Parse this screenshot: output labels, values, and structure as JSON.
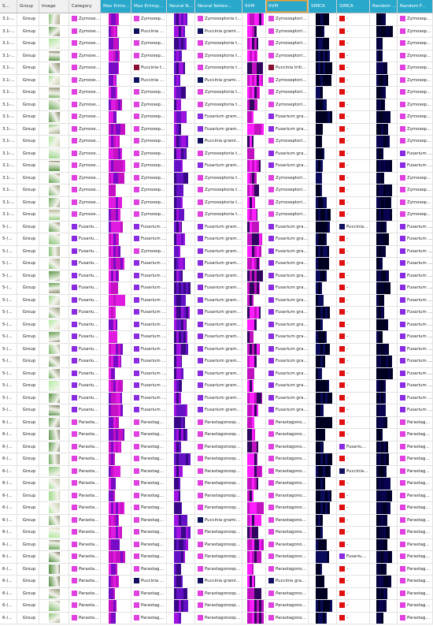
{
  "table": {
    "columns": [
      "S...",
      "Group",
      "Image",
      "Category",
      "Max Entro...",
      "Max Entrop...",
      "Neural Ne...",
      "Neural Netwo...",
      "SVM",
      "SVM",
      "SIMCA",
      "SIMCA",
      "Random F...",
      "Random F..."
    ],
    "class_colors": {
      "Zymoseptoria tritici": "#e040e0",
      "Fusarium graminearum": "#8a2be2",
      "Puccinia graminis": "#10105e",
      "Puccinia triticina": "#8b1030",
      "Parastagonospora nodorum": "#e040e0",
      "–": "#e01010"
    },
    "rows": [
      [
        "3.1-...",
        "Group",
        "Zymoseptoria tritici",
        "Zymoseptoria tritici",
        "Zymoseptoria tritici",
        "Zymoseptoria tritici",
        "–",
        "Zymoseptoria tritici"
      ],
      [
        "3.1-...",
        "Group",
        "Zymoseptoria tritici",
        "Puccinia graminis",
        "Puccinia graminis",
        "Zymoseptoria tritici",
        "–",
        "Zymoseptoria tritici"
      ],
      [
        "3.1-...",
        "Group",
        "Zymoseptoria tritici",
        "Zymoseptoria tritici",
        "Zymoseptoria tritici",
        "Zymoseptoria tritici",
        "–",
        "Zymoseptoria tritici"
      ],
      [
        "3.1-...",
        "Group",
        "Zymoseptoria tritici",
        "Zymoseptoria tritici",
        "Zymoseptoria tritici",
        "Zymoseptoria tritici",
        "–",
        "Zymoseptoria tritici"
      ],
      [
        "3.1-...",
        "Group",
        "Zymoseptoria tritici",
        "Puccinia triticina",
        "Zymoseptoria tritici",
        "Puccinia triticina",
        "–",
        "Zymoseptoria tritici"
      ],
      [
        "3.1-...",
        "Group",
        "Zymoseptoria tritici",
        "Puccinia graminis",
        "Puccinia graminis",
        "Zymoseptoria tritici",
        "–",
        "Zymoseptoria tritici"
      ],
      [
        "3.1-...",
        "Group",
        "Zymoseptoria tritici",
        "Zymoseptoria tritici",
        "Zymoseptoria tritici",
        "Zymoseptoria tritici",
        "–",
        "Zymoseptoria tritici"
      ],
      [
        "3.1-...",
        "Group",
        "Zymoseptoria tritici",
        "Zymoseptoria tritici",
        "Zymoseptoria tritici",
        "Zymoseptoria tritici",
        "–",
        "Zymoseptoria tritici"
      ],
      [
        "3.1-...",
        "Group",
        "Zymoseptoria tritici",
        "Zymoseptoria tritici",
        "Fusarium graminearum",
        "Fusarium graminearum",
        "–",
        "Zymoseptoria tritici"
      ],
      [
        "3.1-...",
        "Group",
        "Zymoseptoria tritici",
        "Zymoseptoria tritici",
        "Fusarium graminearum",
        "Fusarium graminearum",
        "–",
        "Zymoseptoria tritici"
      ],
      [
        "3.1-...",
        "Group",
        "Zymoseptoria tritici",
        "Zymoseptoria tritici",
        "Puccinia graminis",
        "Zymoseptoria tritici",
        "–",
        "Zymoseptoria tritici"
      ],
      [
        "3.1-...",
        "Group",
        "Zymoseptoria tritici",
        "Zymoseptoria tritici",
        "Zymoseptoria tritici",
        "Fusarium graminearum",
        "–",
        "Fusarium graminearum"
      ],
      [
        "3.1-...",
        "Group",
        "Zymoseptoria tritici",
        "Zymoseptoria tritici",
        "Fusarium graminearum",
        "Fusarium graminearum",
        "–",
        "Fusarium graminearum"
      ],
      [
        "3.1-...",
        "Group",
        "Zymoseptoria tritici",
        "Zymoseptoria tritici",
        "Zymoseptoria tritici",
        "Zymoseptoria tritici",
        "–",
        "Zymoseptoria tritici"
      ],
      [
        "3.1-...",
        "Group",
        "Zymoseptoria tritici",
        "Zymoseptoria tritici",
        "Zymoseptoria tritici",
        "Zymoseptoria tritici",
        "–",
        "Zymoseptoria tritici"
      ],
      [
        "3.1-...",
        "Group",
        "Zymoseptoria tritici",
        "Zymoseptoria tritici",
        "Zymoseptoria tritici",
        "Zymoseptoria tritici",
        "–",
        "Zymoseptoria tritici"
      ],
      [
        "3.1-...",
        "Group",
        "Zymoseptoria tritici",
        "Zymoseptoria tritici",
        "Zymoseptoria tritici",
        "Zymoseptoria tritici",
        "–",
        "Zymoseptoria tritici"
      ],
      [
        "5-(...",
        "Group",
        "Fusarium graminearum",
        "Fusarium graminearum",
        "Fusarium graminearum",
        "Fusarium graminearum",
        "Puccinia graminis",
        "Fusarium graminearum"
      ],
      [
        "5-(...",
        "Group",
        "Fusarium graminearum",
        "Fusarium graminearum",
        "Fusarium graminearum",
        "Fusarium graminearum",
        "–",
        "Fusarium graminearum"
      ],
      [
        "5-(...",
        "Group",
        "Fusarium graminearum",
        "Zymoseptoria tritici",
        "Fusarium graminearum",
        "Fusarium graminearum",
        "–",
        "Fusarium graminearum"
      ],
      [
        "5-(...",
        "Group",
        "Fusarium graminearum",
        "Fusarium graminearum",
        "Fusarium graminearum",
        "Fusarium graminearum",
        "–",
        "Fusarium graminearum"
      ],
      [
        "5-(...",
        "Group",
        "Fusarium graminearum",
        "Fusarium graminearum",
        "Fusarium graminearum",
        "Fusarium graminearum",
        "–",
        "Fusarium graminearum"
      ],
      [
        "5-(...",
        "Group",
        "Fusarium graminearum",
        "Fusarium graminearum",
        "Fusarium graminearum",
        "Fusarium graminearum",
        "–",
        "Fusarium graminearum"
      ],
      [
        "5-(...",
        "Group",
        "Fusarium graminearum",
        "Fusarium graminearum",
        "Fusarium graminearum",
        "Fusarium graminearum",
        "–",
        "Fusarium graminearum"
      ],
      [
        "5-(...",
        "Group",
        "Fusarium graminearum",
        "Fusarium graminearum",
        "Fusarium graminearum",
        "Fusarium graminearum",
        "–",
        "Fusarium graminearum"
      ],
      [
        "5-(...",
        "Group",
        "Fusarium graminearum",
        "Fusarium graminearum",
        "Fusarium graminearum",
        "Fusarium graminearum",
        "–",
        "Fusarium graminearum"
      ],
      [
        "5-(...",
        "Group",
        "Fusarium graminearum",
        "Fusarium graminearum",
        "Fusarium graminearum",
        "Fusarium graminearum",
        "–",
        "Fusarium graminearum"
      ],
      [
        "5-(...",
        "Group",
        "Fusarium graminearum",
        "Fusarium graminearum",
        "Fusarium graminearum",
        "Fusarium graminearum",
        "–",
        "Fusarium graminearum"
      ],
      [
        "5-(...",
        "Group",
        "Fusarium graminearum",
        "Fusarium graminearum",
        "Fusarium graminearum",
        "Fusarium graminearum",
        "–",
        "Fusarium graminearum"
      ],
      [
        "5-(...",
        "Group",
        "Fusarium graminearum",
        "Fusarium graminearum",
        "Fusarium graminearum",
        "Fusarium graminearum",
        "–",
        "Fusarium graminearum"
      ],
      [
        "5-(...",
        "Group",
        "Fusarium graminearum",
        "Fusarium graminearum",
        "Fusarium graminearum",
        "Fusarium graminearum",
        "–",
        "Fusarium graminearum"
      ],
      [
        "5-(...",
        "Group",
        "Fusarium graminearum",
        "Fusarium graminearum",
        "Fusarium graminearum",
        "Fusarium graminearum",
        "–",
        "Fusarium graminearum"
      ],
      [
        "5-(...",
        "Group",
        "Fusarium graminearum",
        "Fusarium graminearum",
        "Fusarium graminearum",
        "Fusarium graminearum",
        "–",
        "Fusarium graminearum"
      ],
      [
        "6-(...",
        "Group",
        "Parastagonospora nodorum",
        "Parastagonospora nodorum",
        "Parastagonospora nodorum",
        "Parastagonospora nodorum",
        "–",
        "Parastagonospora nodorum"
      ],
      [
        "6-(...",
        "Group",
        "Parastagonospora nodorum",
        "Parastagonospora nodorum",
        "Parastagonospora nodorum",
        "Parastagonospora nodorum",
        "–",
        "Parastagonospora nodorum"
      ],
      [
        "6-(...",
        "Group",
        "Parastagonospora nodorum",
        "Parastagonospora nodorum",
        "Parastagonospora nodorum",
        "Parastagonospora nodorum",
        "Fusarium graminearum",
        "Parastagonospora nodorum"
      ],
      [
        "6-(...",
        "Group",
        "Parastagonospora nodorum",
        "Parastagonospora nodorum",
        "Parastagonospora nodorum",
        "Parastagonospora nodorum",
        "–",
        "Parastagonospora nodorum"
      ],
      [
        "6-(...",
        "Group",
        "Parastagonospora nodorum",
        "Parastagonospora nodorum",
        "Parastagonospora nodorum",
        "Parastagonospora nodorum",
        "Puccinia graminis",
        "Parastagonospora nodorum"
      ],
      [
        "6-(...",
        "Group",
        "Parastagonospora nodorum",
        "Parastagonospora nodorum",
        "Parastagonospora nodorum",
        "Parastagonospora nodorum",
        "–",
        "Parastagonospora nodorum"
      ],
      [
        "6-(...",
        "Group",
        "Parastagonospora nodorum",
        "Parastagonospora nodorum",
        "Parastagonospora nodorum",
        "Parastagonospora nodorum",
        "–",
        "Parastagonospora nodorum"
      ],
      [
        "6-(...",
        "Group",
        "Parastagonospora nodorum",
        "Parastagonospora nodorum",
        "Parastagonospora nodorum",
        "Parastagonospora nodorum",
        "–",
        "Parastagonospora nodorum"
      ],
      [
        "6-(...",
        "Group",
        "Parastagonospora nodorum",
        "Parastagonospora nodorum",
        "Puccinia graminis",
        "Parastagonospora nodorum",
        "–",
        "Parastagonospora nodorum"
      ],
      [
        "6-(...",
        "Group",
        "Parastagonospora nodorum",
        "Parastagonospora nodorum",
        "Parastagonospora nodorum",
        "Parastagonospora nodorum",
        "–",
        "Parastagonospora nodorum"
      ],
      [
        "6-(...",
        "Group",
        "Parastagonospora nodorum",
        "Parastagonospora nodorum",
        "Parastagonospora nodorum",
        "Parastagonospora nodorum",
        "–",
        "Parastagonospora nodorum"
      ],
      [
        "6-(...",
        "Group",
        "Parastagonospora nodorum",
        "Parastagonospora nodorum",
        "Parastagonospora nodorum",
        "Parastagonospora nodorum",
        "Fusarium graminearum",
        "Parastagonospora nodorum"
      ],
      [
        "6-(...",
        "Group",
        "Parastagonospora nodorum",
        "Parastagonospora nodorum",
        "Parastagonospora nodorum",
        "Parastagonospora nodorum",
        "–",
        "Parastagonospora nodorum"
      ],
      [
        "6-(...",
        "Group",
        "Parastagonospora nodorum",
        "Puccinia graminis",
        "Puccinia graminis",
        "Puccinia graminis",
        "–",
        "Parastagonospora nodorum"
      ],
      [
        "6-(...",
        "Group",
        "Parastagonospora nodorum",
        "Parastagonospora nodorum",
        "Parastagonospora nodorum",
        "Parastagonospora nodorum",
        "–",
        "Parastagonospora nodorum"
      ],
      [
        "6-(...",
        "Group",
        "Parastagonospora nodorum",
        "Parastagonospora nodorum",
        "Parastagonospora nodorum",
        "Parastagonospora nodorum",
        "–",
        "Parastagonospora nodorum"
      ],
      [
        "6-(...",
        "Group",
        "Parastagonospora nodorum",
        "Parastagonospora nodorum",
        "Parastagonospora nodorum",
        "Parastagonospora nodorum",
        "–",
        "Parastagonospora nodorum"
      ]
    ]
  }
}
